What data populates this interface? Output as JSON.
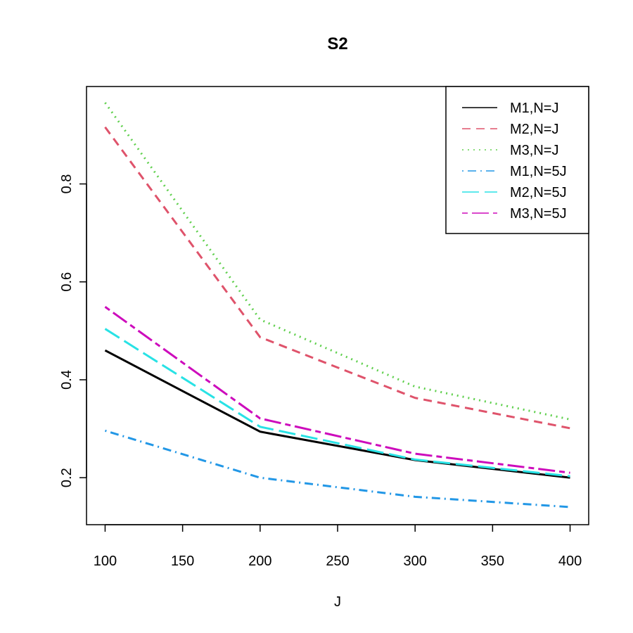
{
  "chart_data": {
    "type": "line",
    "title": "S2",
    "x_label": "J",
    "x": [
      100,
      200,
      300,
      400
    ],
    "series": [
      {
        "name": "M1,N=J",
        "color": "#000000",
        "dash": "solid",
        "values": [
          0.46,
          0.294,
          0.236,
          0.2
        ]
      },
      {
        "name": "M2,N=J",
        "color": "#DF536B",
        "dash": "dashed",
        "values": [
          0.916,
          0.487,
          0.363,
          0.301
        ]
      },
      {
        "name": "M3,N=J",
        "color": "#61D04F",
        "dash": "dotted",
        "values": [
          0.966,
          0.523,
          0.386,
          0.319
        ]
      },
      {
        "name": "M1,N=5J",
        "color": "#2297E6",
        "dash": "dotdash",
        "values": [
          0.296,
          0.2,
          0.161,
          0.14
        ]
      },
      {
        "name": "M2,N=5J",
        "color": "#28E2E5",
        "dash": "longdash",
        "values": [
          0.504,
          0.304,
          0.237,
          0.203
        ]
      },
      {
        "name": "M3,N=5J",
        "color": "#CD0BBC",
        "dash": "twodash",
        "values": [
          0.549,
          0.321,
          0.249,
          0.21
        ]
      }
    ],
    "xlim": [
      88,
      412
    ],
    "ylim": [
      0.104,
      0.999
    ],
    "xticks": [
      100,
      150,
      200,
      250,
      300,
      350,
      400
    ],
    "yticks": [
      0.2,
      0.4,
      0.6,
      0.8
    ],
    "legend": "top-right",
    "grid": false
  }
}
